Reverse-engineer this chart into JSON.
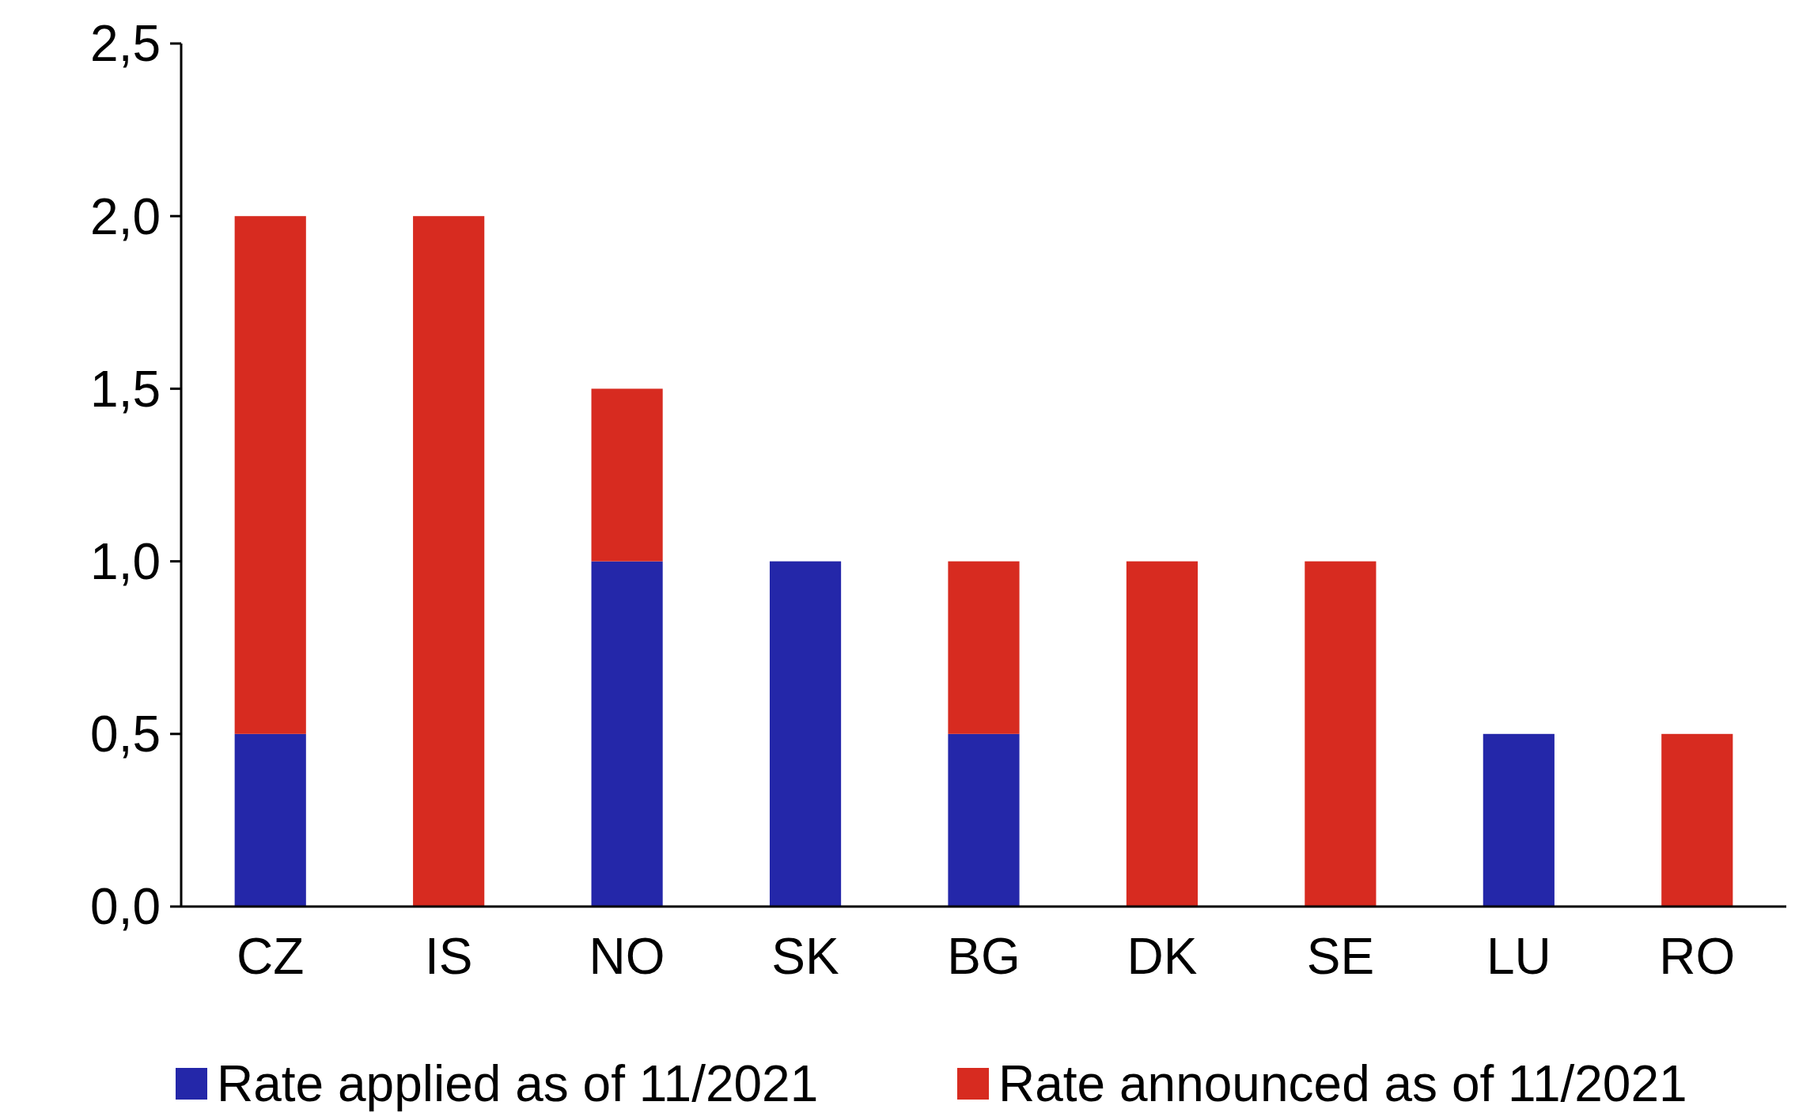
{
  "chart_data": {
    "type": "bar",
    "stacked": true,
    "categories": [
      "CZ",
      "IS",
      "NO",
      "SK",
      "BG",
      "DK",
      "SE",
      "LU",
      "RO"
    ],
    "series": [
      {
        "name": "Rate applied as of 11/2021",
        "color": "#2427a9",
        "values": [
          0.5,
          0,
          1.0,
          1.0,
          0.5,
          0,
          0,
          0.5,
          0
        ]
      },
      {
        "name": "Rate announced as of 11/2021",
        "color": "#d72b20",
        "values": [
          1.5,
          2.0,
          0.5,
          0,
          0.5,
          1.0,
          1.0,
          0,
          0.5
        ]
      }
    ],
    "ylim": [
      0,
      2.5
    ],
    "yticks": [
      {
        "value": 0,
        "label": "0,0"
      },
      {
        "value": 0.5,
        "label": "0,5"
      },
      {
        "value": 1,
        "label": "1,0"
      },
      {
        "value": 1.5,
        "label": "1,5"
      },
      {
        "value": 2,
        "label": "2,0"
      },
      {
        "value": 2.5,
        "label": "2,5"
      }
    ],
    "grid": false,
    "legend": "bottom"
  }
}
